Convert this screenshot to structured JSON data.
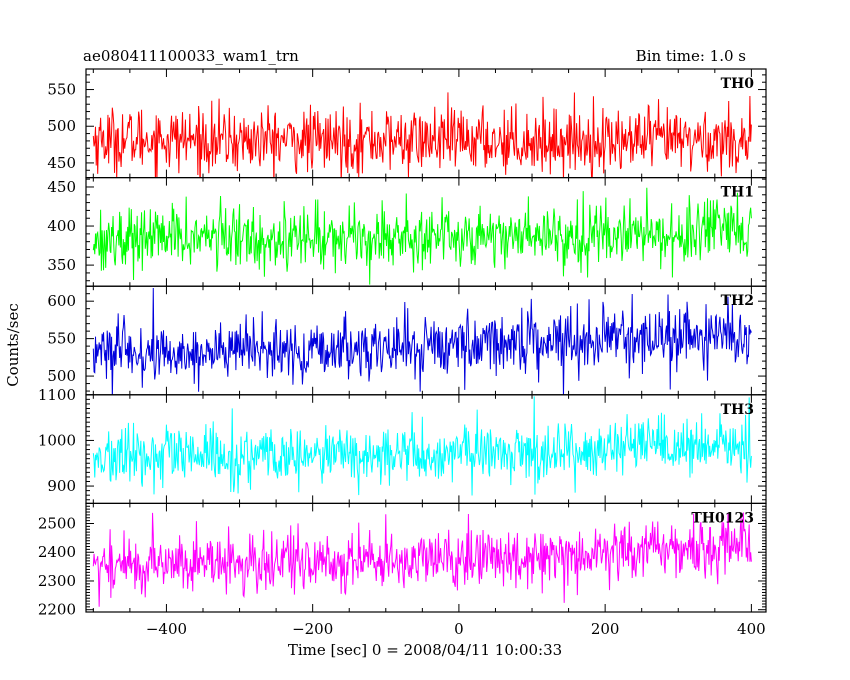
{
  "chart_data": {
    "type": "line",
    "title": "ae080411100033_wam1_trn",
    "subtitle": "Bin time: 1.0 s",
    "xlabel": "Time [sec] 0 = 2008/04/11 10:00:33",
    "ylabel": "Counts/sec",
    "xlim": [
      -510,
      420
    ],
    "x_ticks": [
      -400,
      -200,
      0,
      200,
      400
    ],
    "x_tick_labels": [
      "−400",
      "−200",
      "0",
      "200",
      "400"
    ],
    "data_range": [
      -500,
      400
    ],
    "bin_time_s": 1.0,
    "series": [
      {
        "name": "TH0",
        "color": "#ff0000",
        "ylim": [
          430,
          578
        ],
        "y_ticks": [
          450,
          500,
          550
        ],
        "y_tick_labels": [
          "450",
          "500",
          "550"
        ],
        "x": [
          -500,
          -450,
          -400,
          -350,
          -300,
          -250,
          -200,
          -150,
          -100,
          -50,
          0,
          50,
          100,
          150,
          200,
          250,
          300,
          350,
          400
        ],
        "mean": [
          482,
          482,
          483,
          481,
          480,
          481,
          480,
          481,
          481,
          480,
          481,
          481,
          480,
          480,
          480,
          480,
          481,
          481,
          482
        ],
        "spread": [
          22,
          22,
          22,
          22,
          22,
          22,
          22,
          22,
          22,
          22,
          22,
          22,
          22,
          22,
          22,
          22,
          22,
          22,
          22
        ]
      },
      {
        "name": "TH1",
        "color": "#00ff00",
        "ylim": [
          323,
          462
        ],
        "y_ticks": [
          350,
          400,
          450
        ],
        "y_tick_labels": [
          "350",
          "400",
          "450"
        ],
        "x": [
          -500,
          -450,
          -400,
          -350,
          -300,
          -250,
          -200,
          -150,
          -100,
          -50,
          0,
          50,
          100,
          150,
          200,
          250,
          300,
          350,
          400
        ],
        "mean": [
          383,
          384,
          386,
          386,
          385,
          385,
          385,
          386,
          387,
          387,
          388,
          388,
          389,
          389,
          390,
          390,
          390,
          391,
          391
        ],
        "spread": [
          20,
          20,
          20,
          20,
          20,
          20,
          20,
          20,
          20,
          20,
          20,
          20,
          20,
          20,
          20,
          20,
          20,
          20,
          20
        ]
      },
      {
        "name": "TH2",
        "color": "#0000dd",
        "ylim": [
          475,
          620
        ],
        "y_ticks": [
          500,
          550,
          600
        ],
        "y_tick_labels": [
          "500",
          "550",
          "600"
        ],
        "x": [
          -500,
          -450,
          -400,
          -350,
          -300,
          -250,
          -200,
          -150,
          -100,
          -50,
          0,
          50,
          100,
          150,
          200,
          250,
          300,
          350,
          400
        ],
        "mean": [
          535,
          530,
          528,
          532,
          535,
          533,
          530,
          535,
          538,
          540,
          542,
          545,
          548,
          550,
          550,
          552,
          552,
          551,
          552
        ],
        "spread": [
          20,
          20,
          20,
          20,
          20,
          20,
          20,
          20,
          20,
          20,
          20,
          20,
          20,
          20,
          20,
          20,
          20,
          20,
          20
        ]
      },
      {
        "name": "TH3",
        "color": "#00ffff",
        "ylim": [
          862,
          1100
        ],
        "y_ticks": [
          900,
          1000,
          1100
        ],
        "y_tick_labels": [
          "900",
          "1000",
          "1100"
        ],
        "x": [
          -500,
          -450,
          -400,
          -350,
          -300,
          -250,
          -200,
          -150,
          -100,
          -50,
          0,
          50,
          100,
          150,
          200,
          250,
          300,
          350,
          400
        ],
        "mean": [
          960,
          962,
          965,
          965,
          962,
          963,
          965,
          967,
          968,
          968,
          970,
          972,
          975,
          978,
          980,
          982,
          983,
          985,
          988
        ],
        "spread": [
          32,
          32,
          32,
          32,
          32,
          32,
          32,
          32,
          32,
          32,
          32,
          32,
          32,
          32,
          32,
          32,
          32,
          32,
          32
        ]
      },
      {
        "name": "TH0123",
        "color": "#ff00ff",
        "ylim": [
          2192,
          2570
        ],
        "y_ticks": [
          2200,
          2300,
          2400,
          2500
        ],
        "y_tick_labels": [
          "2200",
          "2300",
          "2400",
          "2500"
        ],
        "x": [
          -500,
          -450,
          -400,
          -350,
          -300,
          -250,
          -200,
          -150,
          -100,
          -50,
          0,
          50,
          100,
          150,
          200,
          250,
          300,
          350,
          400
        ],
        "mean": [
          2355,
          2355,
          2362,
          2365,
          2360,
          2362,
          2365,
          2368,
          2372,
          2372,
          2375,
          2380,
          2390,
          2398,
          2400,
          2408,
          2412,
          2420,
          2440
        ],
        "spread": [
          52,
          52,
          52,
          52,
          52,
          52,
          52,
          52,
          52,
          52,
          52,
          52,
          52,
          52,
          52,
          52,
          52,
          52,
          52
        ]
      }
    ]
  }
}
